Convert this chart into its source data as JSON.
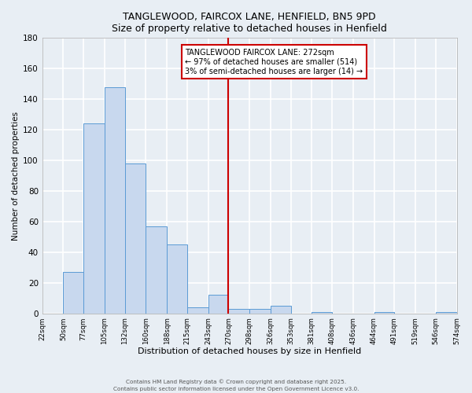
{
  "title": "TANGLEWOOD, FAIRCOX LANE, HENFIELD, BN5 9PD",
  "subtitle": "Size of property relative to detached houses in Henfield",
  "xlabel": "Distribution of detached houses by size in Henfield",
  "ylabel": "Number of detached properties",
  "bin_edges": [
    22,
    50,
    77,
    105,
    132,
    160,
    188,
    215,
    243,
    270,
    298,
    326,
    353,
    381,
    408,
    436,
    464,
    491,
    519,
    546,
    574
  ],
  "bin_labels": [
    "22sqm",
    "50sqm",
    "77sqm",
    "105sqm",
    "132sqm",
    "160sqm",
    "188sqm",
    "215sqm",
    "243sqm",
    "270sqm",
    "298sqm",
    "326sqm",
    "353sqm",
    "381sqm",
    "408sqm",
    "436sqm",
    "464sqm",
    "491sqm",
    "519sqm",
    "546sqm",
    "574sqm"
  ],
  "bar_heights": [
    0,
    27,
    124,
    148,
    98,
    57,
    45,
    4,
    12,
    3,
    3,
    5,
    0,
    1,
    0,
    0,
    1,
    0,
    0,
    1
  ],
  "bar_color": "#c8d8ee",
  "bar_edge_color": "#5b9bd5",
  "vline_x": 270,
  "vline_color": "#cc0000",
  "ylim": [
    0,
    180
  ],
  "yticks": [
    0,
    20,
    40,
    60,
    80,
    100,
    120,
    140,
    160,
    180
  ],
  "annotation_title": "TANGLEWOOD FAIRCOX LANE: 272sqm",
  "annotation_line1": "← 97% of detached houses are smaller (514)",
  "annotation_line2": "3% of semi-detached houses are larger (14) →",
  "annotation_box_color": "#cc0000",
  "bg_color": "#e8eef4",
  "grid_color": "#ffffff",
  "footer1": "Contains HM Land Registry data © Crown copyright and database right 2025.",
  "footer2": "Contains public sector information licensed under the Open Government Licence v3.0."
}
